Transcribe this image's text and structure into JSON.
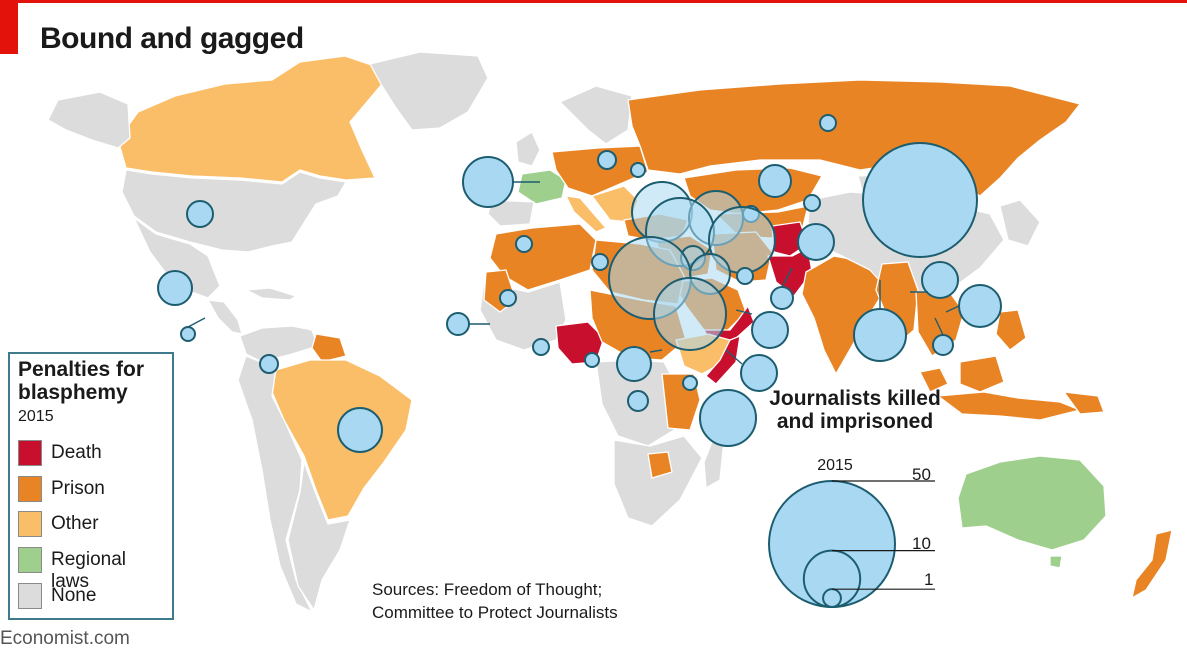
{
  "title": "Bound and gagged",
  "legend": {
    "title": "Penalties for blasphemy",
    "year": "2015",
    "items": [
      {
        "label": "Death",
        "color": "#c8102e"
      },
      {
        "label": "Prison",
        "color": "#e98424"
      },
      {
        "label": "Other",
        "color": "#fbbe68"
      },
      {
        "label": "Regional laws",
        "color": "#9fcf8d"
      },
      {
        "label": "None",
        "color": "#dcdcdc"
      }
    ]
  },
  "journalists": {
    "title": "Journalists killed and imprisoned",
    "year": "2015",
    "scale": [
      {
        "value": 50,
        "label": "50"
      },
      {
        "value": 10,
        "label": "10"
      },
      {
        "value": 1,
        "label": "1"
      }
    ]
  },
  "sources": [
    "Sources: Freedom of Thought;",
    "Committee to Protect Journalists"
  ],
  "footer": "Economist.com",
  "colors": {
    "ocean": "#ffffff",
    "bubble_fill": "#a9d9f2",
    "bubble_stroke": "#1d5d70",
    "border": "#ffffff"
  }
}
